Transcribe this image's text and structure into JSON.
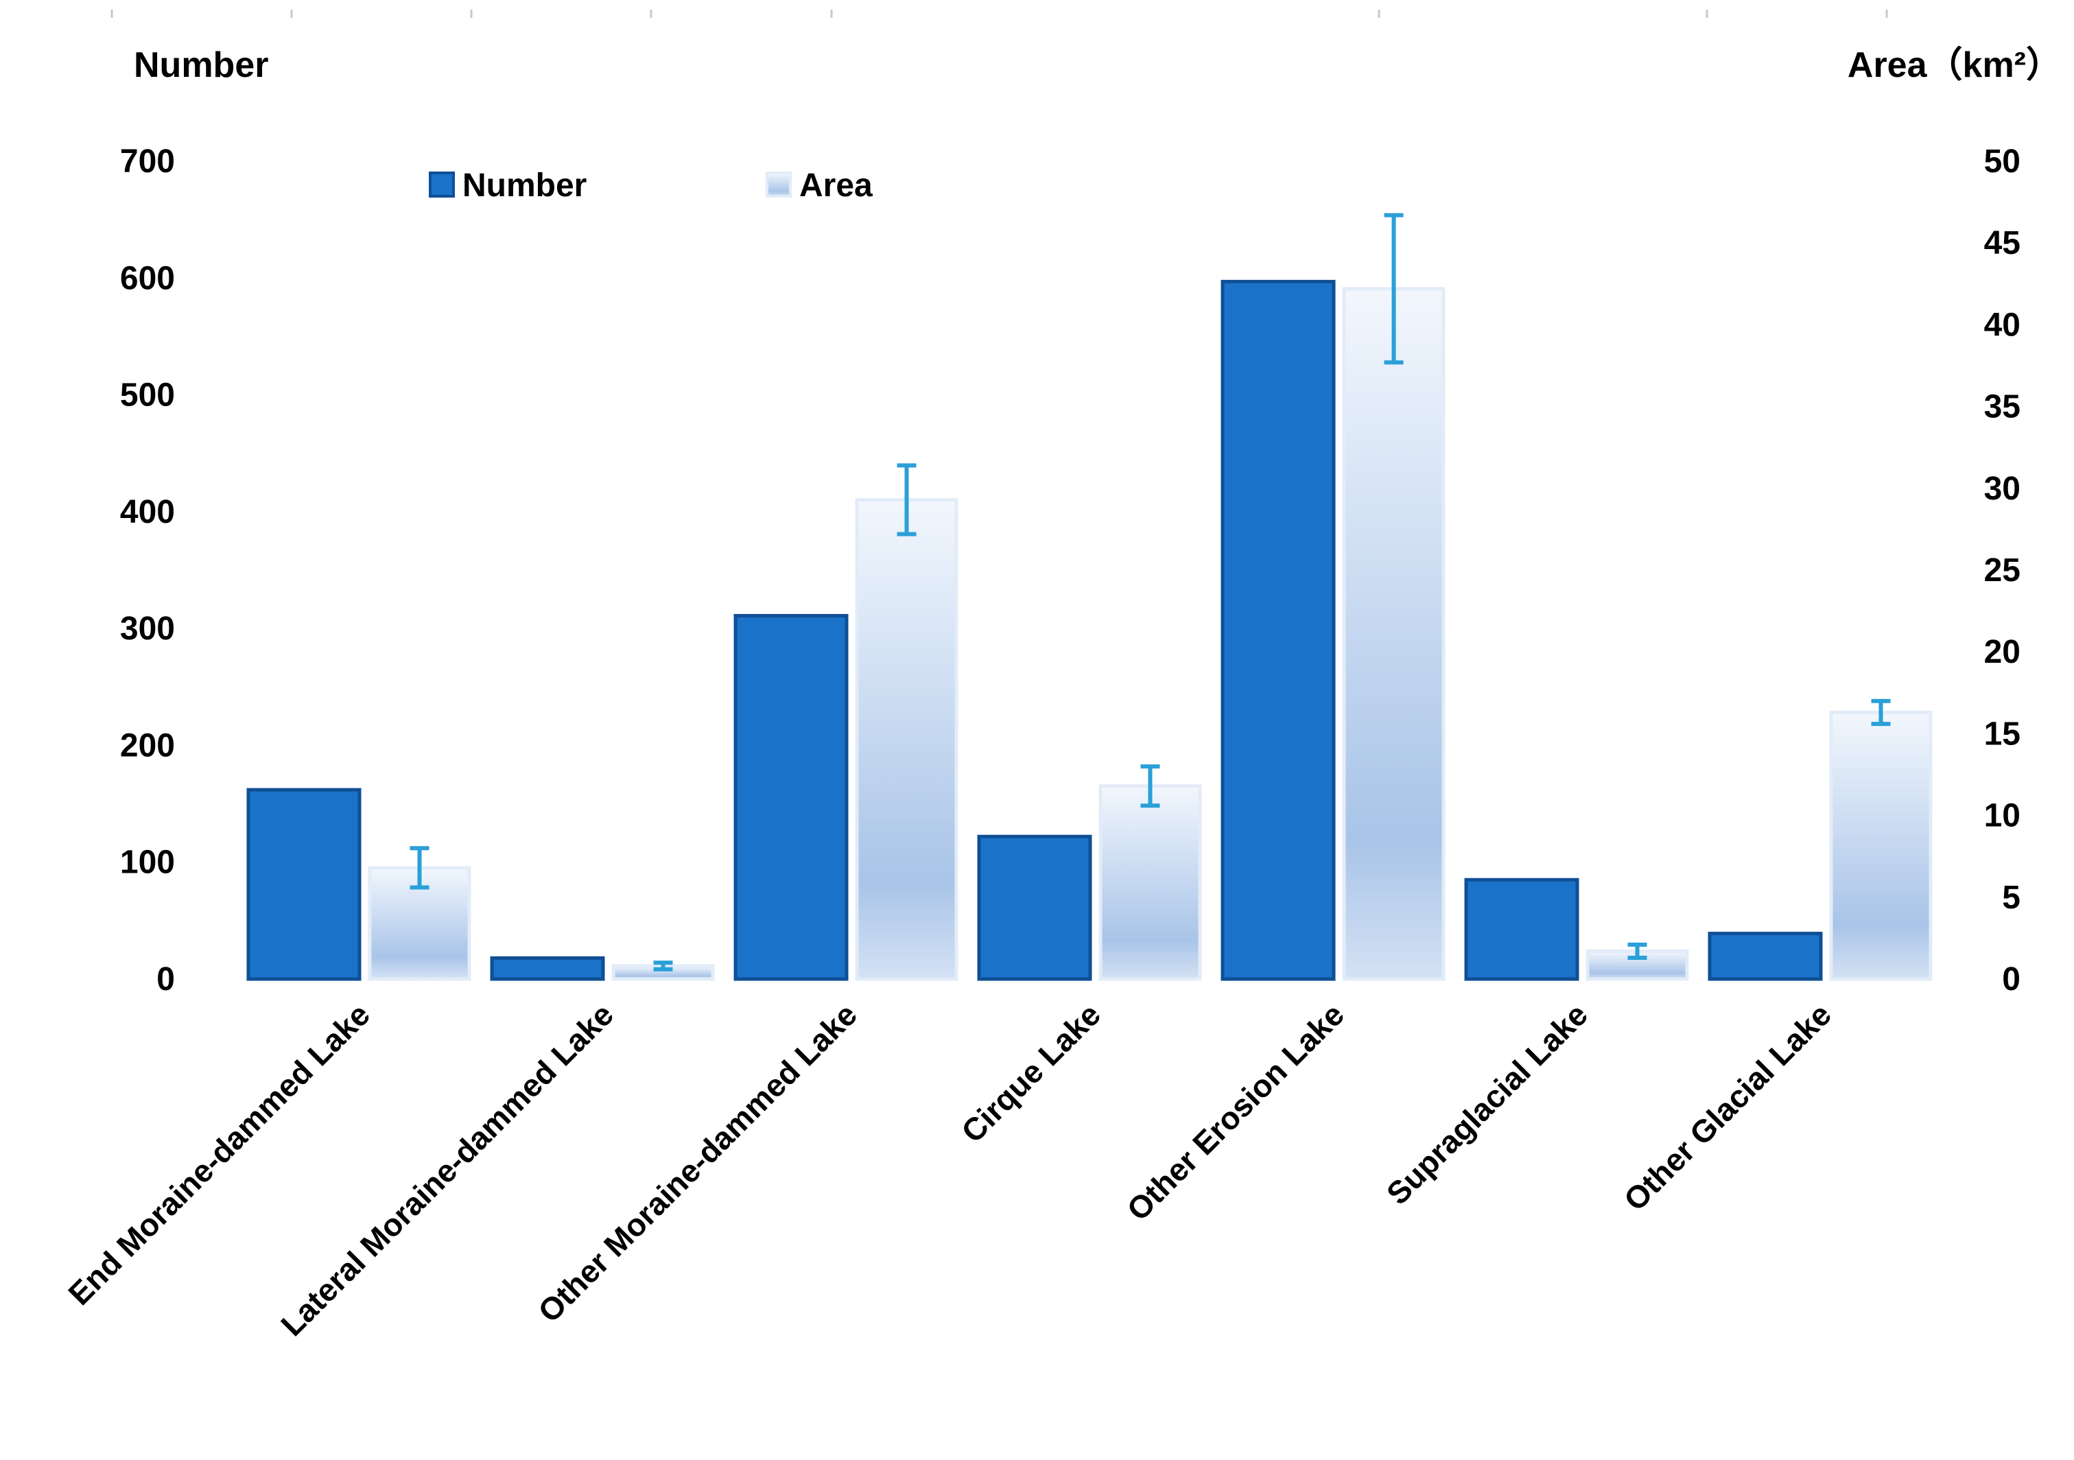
{
  "chart_data": {
    "type": "bar",
    "categories": [
      "End Moraine-dammed Lake",
      "Lateral Moraine-dammed Lake",
      "Other Moraine-dammed Lake",
      "Cirque Lake",
      "Other Erosion Lake",
      "Supraglacial Lake",
      "Other Glacial Lake"
    ],
    "series": [
      {
        "name": "Number",
        "axis": "left",
        "values": [
          162,
          18,
          311,
          122,
          597,
          85,
          39
        ],
        "color": "#1a73c8"
      },
      {
        "name": "Area",
        "axis": "right",
        "values": [
          6.8,
          0.8,
          29.3,
          11.8,
          42.2,
          1.7,
          16.3
        ],
        "error": [
          1.2,
          0.2,
          2.1,
          1.2,
          4.5,
          0.4,
          0.7
        ],
        "color": "#a9c4e8"
      }
    ],
    "left_axis": {
      "title": "Number",
      "ylim": [
        0,
        700
      ],
      "ticks": [
        "0",
        "100",
        "200",
        "300",
        "400",
        "500",
        "600",
        "700"
      ]
    },
    "right_axis": {
      "title": "Area（km²）",
      "ylim": [
        0,
        50
      ],
      "ticks": [
        "0",
        "5",
        "10",
        "15",
        "20",
        "25",
        "30",
        "35",
        "40",
        "45",
        "50"
      ]
    },
    "legend": [
      "Number",
      "Area"
    ],
    "legend_position": "top-left",
    "grid": false
  }
}
